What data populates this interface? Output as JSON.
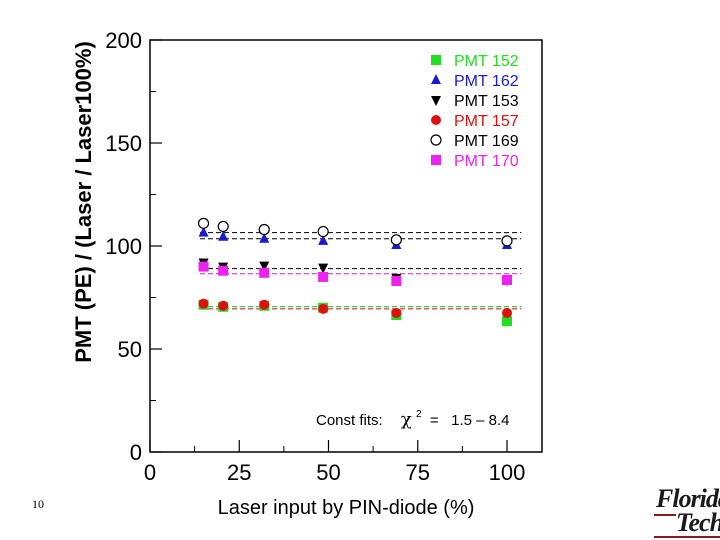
{
  "page": {
    "number": "10"
  },
  "logo": {
    "line1": "Florida",
    "line2": "Tech",
    "accent": "#8b1a1a"
  },
  "chart_data": {
    "type": "scatter",
    "title": "",
    "xlabel": "Laser input by PIN-diode (%)",
    "ylabel": "PMT (PE) / (Laser / Laser100%)",
    "xlim": [
      0,
      110
    ],
    "ylim": [
      0,
      200
    ],
    "xticks": [
      "0",
      "25",
      "50",
      "75",
      "100"
    ],
    "yticks": [
      "0",
      "50",
      "100",
      "150",
      "200"
    ],
    "legend_position": "top-right",
    "annotation": {
      "prefix": "Const fits:",
      "chi": "χ",
      "sup": "2",
      "rest": " =   1.5 – 8.4"
    },
    "series": [
      {
        "name": "PMT 152",
        "marker": "square",
        "color": "#22dd22",
        "x": [
          15,
          20.5,
          32,
          48.5,
          69,
          100
        ],
        "y": [
          71.5,
          70.5,
          71,
          70,
          66.5,
          63.5
        ]
      },
      {
        "name": "PMT 162",
        "marker": "triangle-up",
        "color": "#1a1ad0",
        "x": [
          15,
          20.5,
          32,
          48.5,
          69,
          100
        ],
        "y": [
          106.5,
          104.5,
          103.5,
          102.5,
          100.5,
          100.5
        ]
      },
      {
        "name": "PMT 153",
        "marker": "triangle-down",
        "color": "#000000",
        "x": [
          15,
          20.5,
          32,
          48.5,
          69,
          100
        ],
        "y": [
          92,
          90,
          90.5,
          89.5,
          84.5,
          83.5
        ]
      },
      {
        "name": "PMT 157",
        "marker": "circle",
        "color": "#dd1111",
        "x": [
          15,
          20.5,
          32,
          48.5,
          69,
          100
        ],
        "y": [
          72,
          71,
          71.5,
          69.5,
          67.5,
          67.5
        ]
      },
      {
        "name": "PMT 169",
        "marker": "open-circle",
        "color": "#000000",
        "x": [
          15,
          20.5,
          32,
          48.5,
          69,
          100
        ],
        "y": [
          111,
          109.5,
          108,
          107,
          103,
          102.5
        ]
      },
      {
        "name": "PMT 170",
        "marker": "square",
        "color": "#ee22ee",
        "x": [
          15,
          20.5,
          32,
          48.5,
          69,
          100
        ],
        "y": [
          90,
          88,
          87,
          85,
          83,
          83.5
        ]
      }
    ],
    "fit_lines": [
      {
        "series": "PMT 152",
        "y": 70.5,
        "color": "#22aa22"
      },
      {
        "series": "PMT 162",
        "y": 103.5,
        "color": "#000000"
      },
      {
        "series": "PMT 153",
        "y": 89,
        "color": "#000000"
      },
      {
        "series": "PMT 157",
        "y": 69.5,
        "color": "#cc1111"
      },
      {
        "series": "PMT 169",
        "y": 106.5,
        "color": "#000000"
      },
      {
        "series": "PMT 170",
        "y": 86.5,
        "color": "#cc22cc"
      }
    ]
  }
}
